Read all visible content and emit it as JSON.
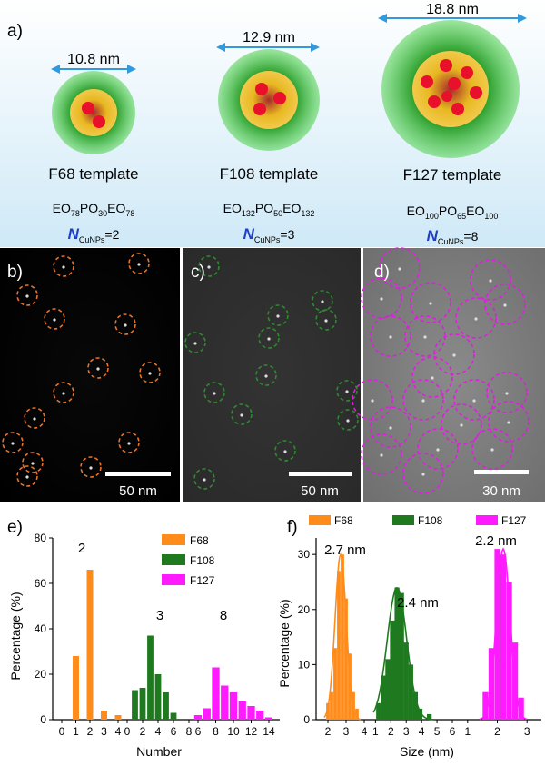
{
  "panel_a": {
    "label": "a)",
    "templates": [
      {
        "dimension": "10.8 nm",
        "name": "F68 template",
        "formula": {
          "eo1": "EO",
          "eo1_sub": "78",
          "po": "PO",
          "po_sub": "30",
          "eo2": "EO",
          "eo2_sub": "78"
        },
        "n_symbol": "N",
        "n_sub": "CuNPs",
        "n_value": "=2"
      },
      {
        "dimension": "12.9 nm",
        "name": "F108 template",
        "formula": {
          "eo1": "EO",
          "eo1_sub": "132",
          "po": "PO",
          "po_sub": "50",
          "eo2": "EO",
          "eo2_sub": "132"
        },
        "n_symbol": "N",
        "n_sub": "CuNPs",
        "n_value": "=3"
      },
      {
        "dimension": "18.8 nm",
        "name": "F127 template",
        "formula": {
          "eo1": "EO",
          "eo1_sub": "100",
          "po": "PO",
          "po_sub": "65",
          "eo2": "EO",
          "eo2_sub": "100"
        },
        "n_symbol": "N",
        "n_sub": "CuNPs",
        "n_value": "=8"
      }
    ]
  },
  "micrographs": [
    {
      "label": "b)",
      "scale_bar": "50 nm",
      "circle_color": "#e8742a"
    },
    {
      "label": "c)",
      "scale_bar": "50 nm",
      "circle_color": "#2f8a2f"
    },
    {
      "label": "d)",
      "scale_bar": "30 nm",
      "circle_color": "#e01ee0"
    }
  ],
  "colors": {
    "F68": "#ff8c1a",
    "F108": "#1f7a1f",
    "F127": "#ff1aff",
    "arrow": "#3399dd"
  },
  "chart_data": [
    {
      "panel": "e)",
      "type": "bar",
      "xlabel": "Number",
      "ylabel": "Percentage (%)",
      "ylim": [
        0,
        80
      ],
      "yticks": [
        0,
        20,
        40,
        60,
        80
      ],
      "xtick_labels": [
        "0",
        "1",
        "2",
        "3",
        "4",
        "0",
        "2",
        "4",
        "6",
        "8",
        "6",
        "8",
        "10",
        "12",
        "14"
      ],
      "legend": [
        "F68",
        "F108",
        "F127"
      ],
      "legend_position": "top-right",
      "annotations": [
        "2",
        "3",
        "8"
      ],
      "series": [
        {
          "name": "F68",
          "x": [
            1,
            2,
            3,
            4
          ],
          "values": [
            28,
            66,
            4,
            2
          ]
        },
        {
          "name": "F108",
          "x": [
            1,
            2,
            3,
            4,
            5,
            6
          ],
          "values": [
            13,
            14,
            37,
            20,
            12,
            3
          ]
        },
        {
          "name": "F127",
          "x": [
            6,
            7,
            8,
            9,
            10,
            11,
            12,
            13,
            14
          ],
          "values": [
            2,
            5,
            23,
            15,
            12,
            8,
            6,
            4,
            1
          ]
        }
      ]
    },
    {
      "panel": "f)",
      "type": "bar",
      "xlabel": "Size (nm)",
      "ylabel": "Percentage (%)",
      "ylim": [
        0,
        33
      ],
      "yticks": [
        0,
        10,
        20,
        30
      ],
      "xtick_labels": [
        "2",
        "3",
        "4",
        "1",
        "2",
        "3",
        "4",
        "5",
        "6",
        "1",
        "2",
        "3"
      ],
      "legend": [
        "F68",
        "F108",
        "F127"
      ],
      "legend_position": "top",
      "annotations": [
        "2.7 nm",
        "2.4 nm",
        "2.2 nm"
      ],
      "series": [
        {
          "name": "F68",
          "mean": 2.7,
          "x": [
            2.0,
            2.2,
            2.4,
            2.6,
            2.8,
            3.0,
            3.2,
            3.4,
            3.6
          ],
          "values": [
            3,
            5,
            13,
            27,
            30,
            22,
            12,
            5,
            2
          ]
        },
        {
          "name": "F108",
          "mean": 2.4,
          "x": [
            1.2,
            1.5,
            1.8,
            2.1,
            2.4,
            2.7,
            3.0,
            3.3,
            3.6,
            3.9,
            4.5
          ],
          "values": [
            3,
            8,
            11,
            18,
            24,
            23,
            14,
            10,
            5,
            2,
            1
          ]
        },
        {
          "name": "F127",
          "mean": 2.2,
          "x": [
            1.6,
            1.8,
            2.0,
            2.2,
            2.4,
            2.6,
            2.8
          ],
          "values": [
            5,
            13,
            31,
            30,
            25,
            14,
            4
          ]
        }
      ]
    }
  ]
}
